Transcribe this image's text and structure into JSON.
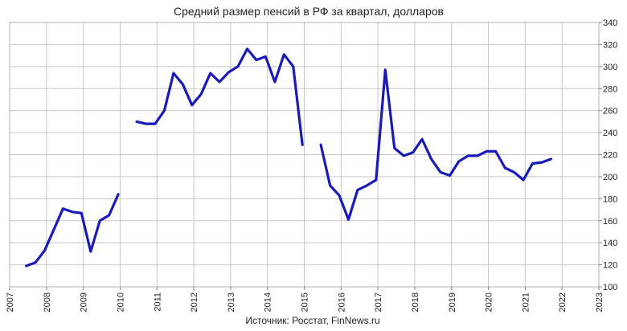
{
  "chart_data": {
    "type": "line",
    "title": "Средний размер пенсий в РФ за квартал, долларов",
    "source": "Источник: Росстат, FinNews.ru",
    "xlabel": "",
    "ylabel": "",
    "xlim": [
      2007,
      2023
    ],
    "ylim": [
      100,
      340
    ],
    "x_ticks": [
      "2007",
      "2008",
      "2009",
      "2010",
      "2011",
      "2012",
      "2013",
      "2014",
      "2015",
      "2016",
      "2017",
      "2018",
      "2019",
      "2020",
      "2021",
      "2022",
      "2023"
    ],
    "y_ticks": [
      "100",
      "120",
      "140",
      "160",
      "180",
      "200",
      "220",
      "240",
      "260",
      "280",
      "300",
      "320",
      "340"
    ],
    "y_axis_position": "right",
    "grid": true,
    "legend": "none",
    "line_color": "#1a1aba",
    "series": [
      {
        "segments": [
          [
            [
              2007.45,
              119
            ],
            [
              2007.7,
              122
            ],
            [
              2007.95,
              133
            ],
            [
              2008.2,
              152
            ],
            [
              2008.45,
              171
            ],
            [
              2008.7,
              168
            ],
            [
              2008.95,
              167
            ],
            [
              2009.2,
              132
            ],
            [
              2009.45,
              160
            ],
            [
              2009.7,
              165
            ],
            [
              2009.95,
              184
            ]
          ],
          [
            [
              2010.45,
              250
            ],
            [
              2010.7,
              248
            ],
            [
              2010.95,
              248
            ],
            [
              2011.2,
              260
            ],
            [
              2011.45,
              294
            ],
            [
              2011.7,
              284
            ],
            [
              2011.95,
              265
            ],
            [
              2012.2,
              275
            ],
            [
              2012.45,
              294
            ],
            [
              2012.7,
              286
            ],
            [
              2012.95,
              295
            ],
            [
              2013.2,
              300
            ],
            [
              2013.45,
              316
            ],
            [
              2013.7,
              306
            ],
            [
              2013.95,
              309
            ],
            [
              2014.2,
              286
            ],
            [
              2014.45,
              311
            ],
            [
              2014.7,
              300
            ],
            [
              2014.95,
              229
            ]
          ],
          [
            [
              2015.45,
              229
            ],
            [
              2015.7,
              192
            ],
            [
              2015.95,
              183
            ],
            [
              2016.2,
              161
            ],
            [
              2016.45,
              188
            ],
            [
              2016.7,
              192
            ],
            [
              2016.95,
              197
            ],
            [
              2017.2,
              297
            ],
            [
              2017.45,
              226
            ],
            [
              2017.7,
              219
            ],
            [
              2017.95,
              222
            ],
            [
              2018.2,
              234
            ],
            [
              2018.45,
              216
            ],
            [
              2018.7,
              204
            ],
            [
              2018.95,
              201
            ],
            [
              2019.2,
              214
            ],
            [
              2019.45,
              219
            ],
            [
              2019.7,
              219
            ],
            [
              2019.95,
              223
            ],
            [
              2020.2,
              223
            ],
            [
              2020.45,
              208
            ],
            [
              2020.7,
              204
            ],
            [
              2020.95,
              197
            ],
            [
              2021.2,
              212
            ],
            [
              2021.45,
              213
            ],
            [
              2021.7,
              216
            ]
          ]
        ]
      }
    ]
  }
}
